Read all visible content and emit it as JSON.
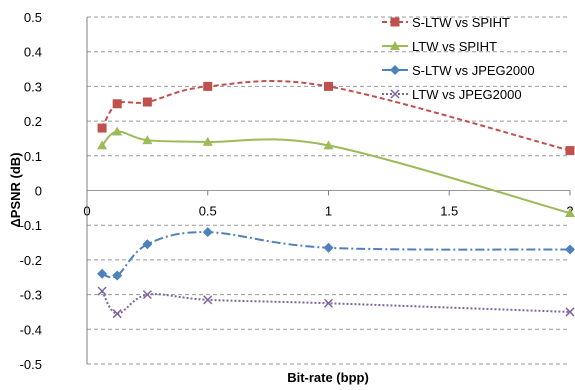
{
  "chart_data": {
    "type": "line",
    "xlabel": "Bit-rate (bpp)",
    "ylabel": "ΔPSNR (dB)",
    "xlim": [
      0,
      2
    ],
    "ylim": [
      -0.5,
      0.5
    ],
    "x_ticks": [
      0,
      0.5,
      1,
      1.5,
      2
    ],
    "y_ticks": [
      0.5,
      0.4,
      0.3,
      0.2,
      0.1,
      0,
      -0.1,
      -0.2,
      -0.3,
      -0.4,
      -0.5
    ],
    "grid": "horizontal dashed",
    "legend_position": "top-right",
    "series": [
      {
        "name": "S-LTW vs SPIHT",
        "color": "#c0504d",
        "marker": "square",
        "line": "dashed",
        "x": [
          0.0625,
          0.125,
          0.25,
          0.5,
          1.0,
          2.0
        ],
        "y": [
          0.18,
          0.25,
          0.255,
          0.3,
          0.3,
          0.115
        ]
      },
      {
        "name": "LTW vs SPIHT",
        "color": "#9bbb59",
        "marker": "triangle",
        "line": "solid",
        "x": [
          0.0625,
          0.125,
          0.25,
          0.5,
          1.0,
          2.0
        ],
        "y": [
          0.13,
          0.17,
          0.145,
          0.14,
          0.13,
          -0.065
        ]
      },
      {
        "name": "S-LTW vs JPEG2000",
        "color": "#4f81bd",
        "marker": "diamond",
        "line": "dash-dot",
        "x": [
          0.0625,
          0.125,
          0.25,
          0.5,
          1.0,
          2.0
        ],
        "y": [
          -0.24,
          -0.245,
          -0.155,
          -0.12,
          -0.165,
          -0.17
        ]
      },
      {
        "name": "LTW vs JPEG2000",
        "color": "#8064a2",
        "marker": "x",
        "line": "dotted",
        "x": [
          0.0625,
          0.125,
          0.25,
          0.5,
          1.0,
          2.0
        ],
        "y": [
          -0.29,
          -0.355,
          -0.3,
          -0.315,
          -0.325,
          -0.35
        ]
      }
    ]
  }
}
